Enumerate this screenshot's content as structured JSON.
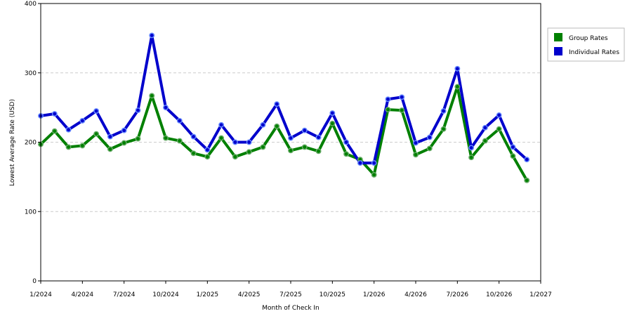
{
  "chart_data": {
    "type": "line",
    "xlabel": "Month of Check In",
    "ylabel": "Lowest Average Rate (USD)",
    "ylim": [
      0,
      400
    ],
    "yticks": [
      0,
      100,
      200,
      300,
      400
    ],
    "grid": "horizontal-dashed",
    "legend_position": "right",
    "x_tick_labels": [
      "1/2024",
      "4/2024",
      "7/2024",
      "10/2024",
      "1/2025",
      "4/2025",
      "7/2025",
      "10/2025",
      "1/2026",
      "4/2026",
      "7/2026",
      "10/2026",
      "1/2027"
    ],
    "x": [
      "2024-01",
      "2024-02",
      "2024-03",
      "2024-04",
      "2024-05",
      "2024-06",
      "2024-07",
      "2024-08",
      "2024-09",
      "2024-10",
      "2024-11",
      "2024-12",
      "2025-01",
      "2025-02",
      "2025-03",
      "2025-04",
      "2025-05",
      "2025-06",
      "2025-07",
      "2025-08",
      "2025-09",
      "2025-10",
      "2025-11",
      "2025-12",
      "2026-01",
      "2026-02",
      "2026-03",
      "2026-04",
      "2026-05",
      "2026-06",
      "2026-07",
      "2026-08",
      "2026-09",
      "2026-10",
      "2026-11",
      "2026-12"
    ],
    "series": [
      {
        "name": "Group Rates",
        "color": "#008000",
        "values": [
          197,
          216,
          193,
          195,
          212,
          190,
          199,
          205,
          267,
          206,
          202,
          184,
          179,
          206,
          179,
          186,
          193,
          223,
          188,
          193,
          187,
          227,
          183,
          175,
          153,
          247,
          246,
          182,
          191,
          219,
          280,
          178,
          202,
          219,
          180,
          145
        ]
      },
      {
        "name": "Individual Rates",
        "color": "#0000cc",
        "values": [
          238,
          241,
          218,
          231,
          245,
          208,
          217,
          246,
          354,
          250,
          231,
          208,
          189,
          225,
          200,
          200,
          225,
          255,
          206,
          217,
          207,
          242,
          200,
          170,
          170,
          262,
          265,
          199,
          207,
          245,
          306,
          192,
          221,
          239,
          193,
          175
        ]
      }
    ]
  }
}
